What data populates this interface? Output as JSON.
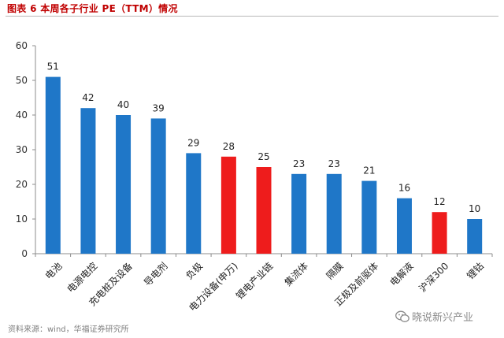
{
  "title": "图表 6  本周各子行业 PE（TTM）情况",
  "source": "资料来源：wind，华福证券研究所",
  "watermark": {
    "text": "晓说新兴产业",
    "icon": "wechat-icon"
  },
  "chart_data": {
    "type": "bar",
    "categories": [
      "电池",
      "电源电控",
      "充电桩及设备",
      "导电剂",
      "负极",
      "电力设备(申万)",
      "锂电产业链",
      "集流体",
      "隔膜",
      "正极及前驱体",
      "电解液",
      "沪深300",
      "锂钴"
    ],
    "values": [
      51,
      42,
      40,
      39,
      29,
      28,
      25,
      23,
      23,
      21,
      16,
      12,
      10
    ],
    "highlighted": [
      "电力设备(申万)",
      "锂电产业链",
      "沪深300"
    ],
    "colors": {
      "default": "#1f77c8",
      "highlight": "#ee1c1c"
    },
    "ylim": [
      0,
      60
    ],
    "yticks": [
      0,
      10,
      20,
      30,
      40,
      50,
      60
    ],
    "data_labels": true,
    "grid": false,
    "legend": "none"
  }
}
